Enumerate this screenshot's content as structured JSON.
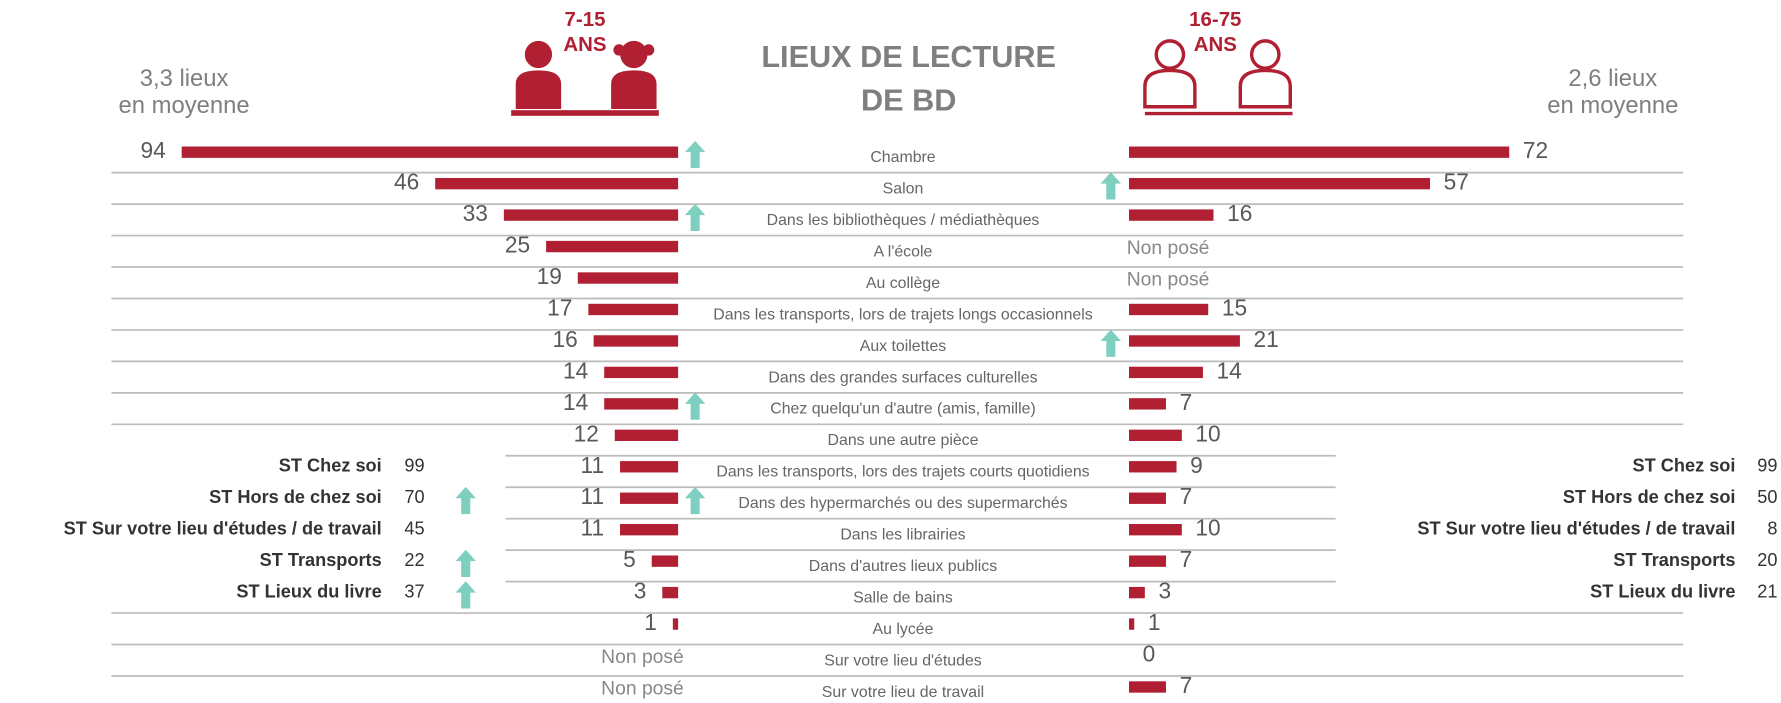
{
  "chart_data": {
    "type": "butterfly",
    "title_lines": [
      "LIEUX DE LECTURE",
      "DE BD"
    ],
    "missing_label": "Non posé",
    "arrow_color": "#7fcfc0",
    "categories": [
      "Chambre",
      "Salon",
      "Dans les bibliothèques / médiathèques",
      "A l'école",
      "Au collège",
      "Dans les transports, lors de trajets longs occasionnels",
      "Aux toilettes",
      "Dans des grandes surfaces culturelles",
      "Chez quelqu'un d'autre (amis, famille)",
      "Dans une autre pièce",
      "Dans les transports, lors des trajets courts quotidiens",
      "Dans des hypermarchés ou des supermarchés",
      "Dans les librairies",
      "Dans d'autres lieux publics",
      "Salle de bains",
      "Au lycée",
      "Sur votre lieu d'études",
      "Sur votre lieu de travail"
    ],
    "series": [
      {
        "name_lines": [
          "7-15",
          "ANS"
        ],
        "average_lines": [
          "3,3 lieux",
          "en moyenne"
        ],
        "color": "#b01f32",
        "values": [
          94,
          46,
          33,
          25,
          19,
          17,
          16,
          14,
          14,
          12,
          11,
          11,
          11,
          5,
          3,
          1,
          null,
          null
        ],
        "up": [
          true,
          false,
          true,
          false,
          false,
          false,
          false,
          false,
          true,
          false,
          false,
          true,
          false,
          false,
          false,
          false,
          false,
          false
        ],
        "subtotals": {
          "labels": [
            "ST Chez soi",
            "ST Hors de chez soi",
            "ST Sur votre lieu d'études / de travail",
            "ST Transports",
            "ST Lieux du livre"
          ],
          "values": [
            99,
            70,
            45,
            22,
            37
          ],
          "up": [
            false,
            true,
            false,
            true,
            true
          ]
        }
      },
      {
        "name_lines": [
          "16-75",
          "ANS"
        ],
        "average_lines": [
          "2,6 lieux",
          "en moyenne"
        ],
        "color": "#b01f32",
        "values": [
          72,
          57,
          16,
          null,
          null,
          15,
          21,
          14,
          7,
          10,
          9,
          7,
          10,
          7,
          3,
          1,
          0,
          7
        ],
        "up": [
          false,
          true,
          false,
          false,
          false,
          false,
          true,
          false,
          false,
          false,
          false,
          false,
          false,
          false,
          false,
          false,
          false,
          false
        ],
        "subtotals": {
          "labels": [
            "ST Chez soi",
            "ST Hors de chez soi",
            "ST Sur votre lieu d'études / de travail",
            "ST Transports",
            "ST Lieux du livre"
          ],
          "values": [
            99,
            50,
            8,
            20,
            21
          ],
          "up": [
            false,
            false,
            false,
            false,
            false
          ]
        }
      }
    ]
  }
}
